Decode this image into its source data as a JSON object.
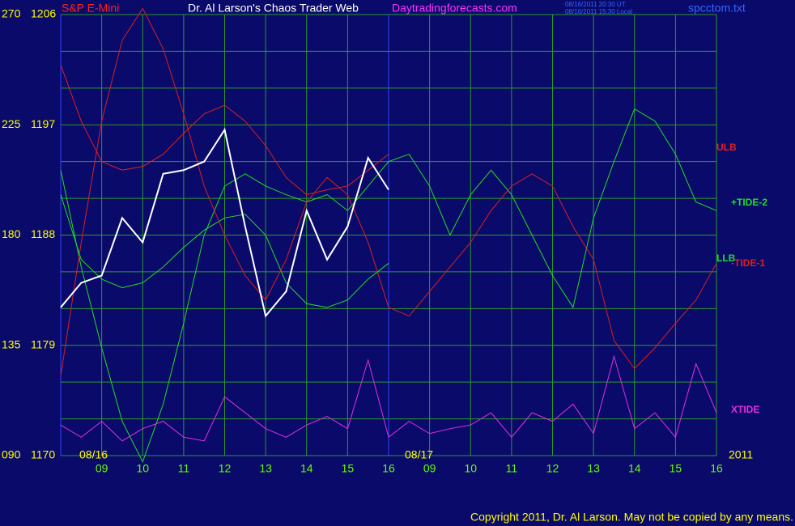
{
  "header": {
    "symbol": "S&P E-Mini",
    "title": "Dr. Al Larson's Chaos Trader Web",
    "site": "Daytradingforecasts.com",
    "timestamps": [
      "08/16/2011 20:30 UT",
      "08/16/2011 15:30 Local"
    ],
    "file": "spcctom.txt"
  },
  "chart_data": {
    "type": "line",
    "x": [
      0,
      0.5,
      1,
      1.5,
      2,
      2.5,
      3,
      3.5,
      4,
      4.5,
      5,
      5.5,
      6,
      6.5,
      7,
      7.5,
      8,
      8.5,
      9,
      9.5,
      10,
      10.5,
      11,
      11.5,
      12,
      12.5,
      13,
      13.5,
      14,
      14.5,
      15,
      15.5,
      16
    ],
    "xlim": [
      0,
      16
    ],
    "xticks": [
      {
        "value": 1,
        "label": "09"
      },
      {
        "value": 2,
        "label": "10"
      },
      {
        "value": 3,
        "label": "11"
      },
      {
        "value": 4,
        "label": "12"
      },
      {
        "value": 5,
        "label": "13"
      },
      {
        "value": 6,
        "label": "14"
      },
      {
        "value": 7,
        "label": "15"
      },
      {
        "value": 8,
        "label": "16"
      },
      {
        "value": 9,
        "label": "09"
      },
      {
        "value": 10,
        "label": "10"
      },
      {
        "value": 11,
        "label": "11"
      },
      {
        "value": 12,
        "label": "12"
      },
      {
        "value": 13,
        "label": "13"
      },
      {
        "value": 14,
        "label": "14"
      },
      {
        "value": 15,
        "label": "15"
      },
      {
        "value": 16,
        "label": "16"
      }
    ],
    "date_labels": [
      "08/16",
      "08/17",
      "2011"
    ],
    "ylim": [
      1170,
      1206
    ],
    "yticks": [
      1170,
      1179,
      1188,
      1197,
      1206
    ],
    "y2lim": [
      90,
      270
    ],
    "y2ticks": [
      {
        "value": 90,
        "label": "090"
      },
      135,
      180,
      225,
      270
    ],
    "grid": true,
    "price": {
      "color": "#ffffff",
      "values": [
        1182.1,
        1184.1,
        1184.7,
        1189.4,
        1187.4,
        1193.0,
        1193.3,
        1194.0,
        1196.6,
        1188.7,
        1181.4,
        1183.4,
        1190.0,
        1186.0,
        1188.7,
        1194.3,
        1191.7,
        null,
        null,
        null,
        null,
        null,
        null,
        null,
        null,
        null,
        null,
        null,
        null,
        null,
        null,
        null,
        null
      ]
    },
    "series": [
      {
        "name": "ULB",
        "color": "#e02020",
        "values": [
          1201.9,
          1197.3,
          1194.0,
          1193.3,
          1193.6,
          1194.6,
          1196.3,
          1197.9,
          1198.6,
          1197.3,
          1195.3,
          1192.7,
          1191.3,
          1191.7,
          1192.0,
          1193.3,
          1194.6,
          null,
          null,
          null,
          null,
          null,
          null,
          null,
          null,
          null,
          null,
          null,
          null,
          null,
          null,
          null,
          null
        ]
      },
      {
        "name": "+TIDE-2",
        "color": "#22dd22",
        "values": [
          1193.3,
          1185.4,
          1178.8,
          1172.8,
          1169.5,
          1174.2,
          1180.8,
          1188.0,
          1192.0,
          1193.0,
          1192.0,
          1191.3,
          1190.7,
          1191.3,
          1190.0,
          1192.0,
          1194.0,
          1194.6,
          1192.0,
          1188.0,
          1191.3,
          1193.3,
          1191.3,
          1188.0,
          1184.7,
          1182.1,
          1189.4,
          1194.0,
          1198.3,
          1197.3,
          1194.6,
          1190.7,
          1190.0
        ]
      },
      {
        "name": "LLB",
        "color": "#22dd22",
        "values": [
          1191.3,
          1186.0,
          1184.4,
          1183.7,
          1184.1,
          1185.4,
          1187.0,
          1188.4,
          1189.4,
          1189.7,
          1188.0,
          1184.1,
          1182.4,
          1182.1,
          1182.7,
          1184.4,
          1185.7,
          null,
          null,
          null,
          null,
          null,
          null,
          null,
          null,
          null,
          null,
          null,
          null,
          null,
          null,
          null,
          null
        ]
      },
      {
        "name": "-TIDE-1",
        "color": "#d82020",
        "values": [
          1176.5,
          1187.4,
          1197.3,
          1203.9,
          1206.5,
          1203.2,
          1197.9,
          1192.0,
          1188.0,
          1184.7,
          1182.7,
          1186.0,
          1190.7,
          1192.7,
          1191.3,
          1187.4,
          1182.1,
          1181.4,
          1183.4,
          1185.4,
          1187.4,
          1190.0,
          1192.0,
          1193.0,
          1192.0,
          1188.7,
          1186.0,
          1179.4,
          1177.1,
          1178.8,
          1180.8,
          1182.7,
          1185.7
        ]
      },
      {
        "name": "XTIDE",
        "color": "#e030e0",
        "values": [
          1172.5,
          1171.5,
          1172.8,
          1171.2,
          1172.2,
          1172.8,
          1171.5,
          1171.2,
          1174.8,
          1173.5,
          1172.2,
          1171.5,
          1172.5,
          1173.2,
          1172.2,
          1177.8,
          1171.5,
          1172.8,
          1171.8,
          1172.2,
          1172.5,
          1173.5,
          1171.5,
          1173.5,
          1172.8,
          1174.2,
          1171.8,
          1178.1,
          1172.2,
          1173.5,
          1171.5,
          1177.5,
          1173.5
        ]
      }
    ]
  },
  "footer": "Copyright 2011, Dr. Al Larson. May not be copied by any means."
}
